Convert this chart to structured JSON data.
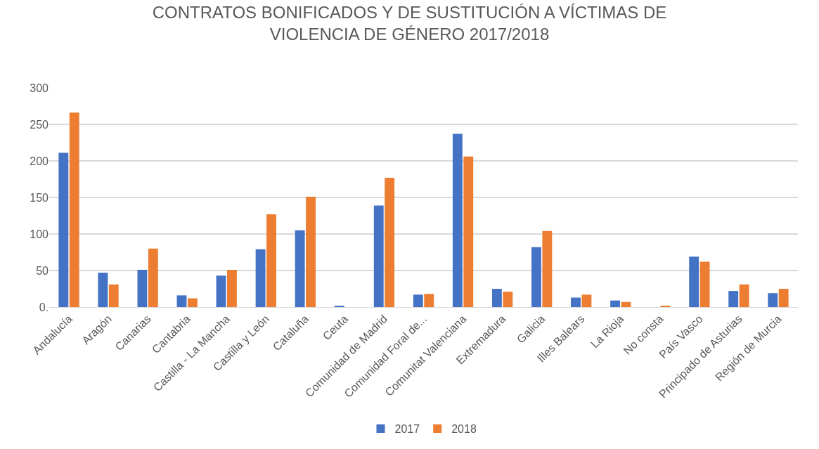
{
  "chart_data": {
    "type": "bar",
    "title": "CONTRATOS BONIFICADOS Y DE SUSTITUCIÓN A VÍCTIMAS DE\nVIOLENCIA DE GÉNERO 2017/2018",
    "categories": [
      "Andalucía",
      "Aragón",
      "Canarias",
      "Cantabria",
      "Castilla - La Mancha",
      "Castilla y León",
      "Cataluña",
      "Ceuta",
      "Comunidad de Madrid",
      "Comunidad Foral de...",
      "Comunitat Valenciana",
      "Extremadura",
      "Galicia",
      "Illes Balears",
      "La Rioja",
      "No consta",
      "País Vasco",
      "Principado de Asturias",
      "Región de Murcia"
    ],
    "series": [
      {
        "name": "2017",
        "color": "#4472c4",
        "values": [
          211,
          47,
          51,
          16,
          43,
          79,
          105,
          1,
          139,
          17,
          237,
          25,
          82,
          13,
          9,
          0,
          69,
          22,
          19
        ]
      },
      {
        "name": "2018",
        "color": "#ed7d31",
        "values": [
          266,
          31,
          80,
          12,
          51,
          127,
          151,
          0,
          177,
          18,
          206,
          21,
          104,
          17,
          7,
          1,
          62,
          31,
          25
        ]
      }
    ],
    "ylim": [
      0,
      300
    ],
    "yticks": [
      {
        "value": 0,
        "label": "0."
      },
      50,
      100,
      150,
      200,
      250,
      300
    ],
    "grid": "y",
    "legend": "bottom"
  }
}
